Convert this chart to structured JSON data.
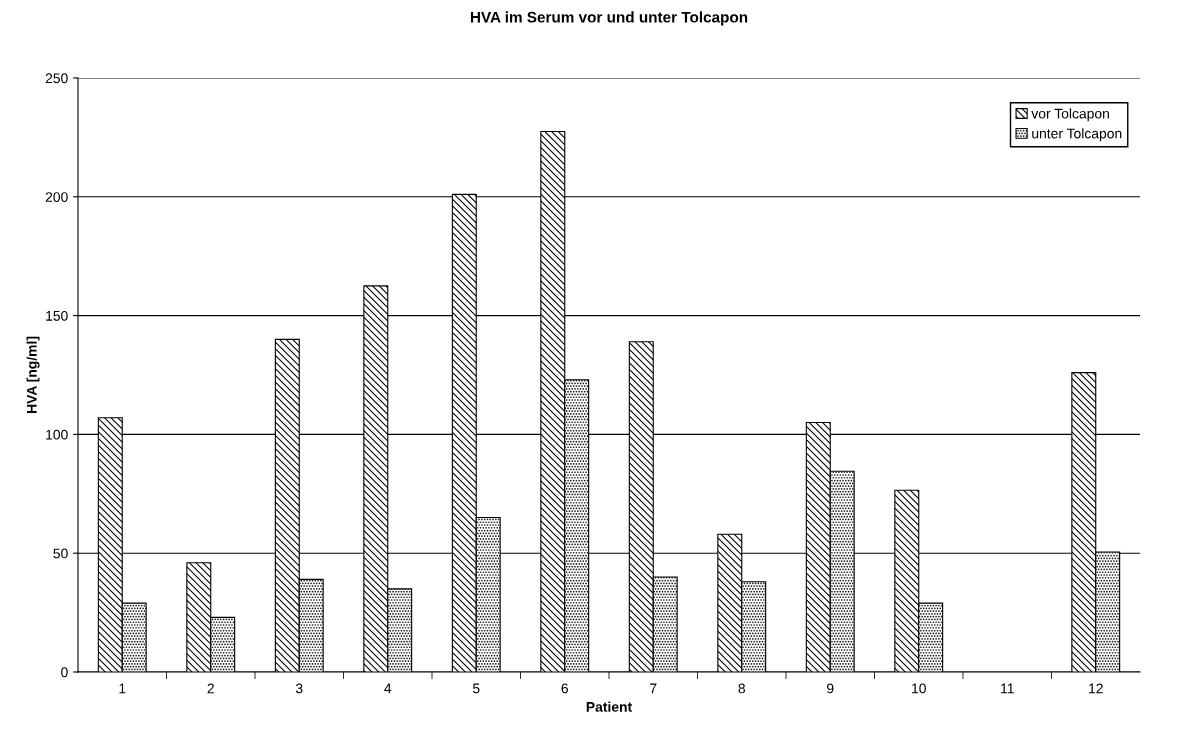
{
  "chart_data": {
    "type": "bar",
    "title": "HVA im Serum vor und unter Tolcapon",
    "xlabel": "Patient",
    "ylabel": "HVA [ng/ml]",
    "categories": [
      "1",
      "2",
      "3",
      "4",
      "5",
      "6",
      "7",
      "8",
      "9",
      "10",
      "11",
      "12"
    ],
    "series": [
      {
        "name": "vor Tolcapon",
        "color": "#000000",
        "values": [
          107,
          46,
          140,
          162.5,
          201,
          227.5,
          139,
          58,
          105,
          76.5,
          null,
          126
        ]
      },
      {
        "name": "unter Tolcapon",
        "color": "#000000",
        "values": [
          29,
          23,
          39,
          35,
          65,
          123,
          40,
          38,
          84.5,
          29,
          null,
          50.5
        ]
      }
    ],
    "ylim": [
      0,
      250
    ],
    "yticks": [
      0,
      50,
      100,
      150,
      200,
      250
    ],
    "grid": "y",
    "legend": "top right"
  }
}
